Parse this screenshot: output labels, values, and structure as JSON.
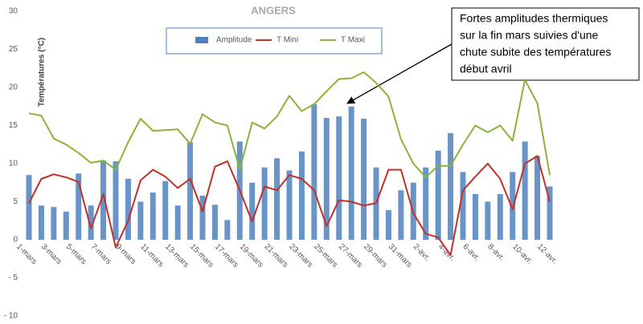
{
  "chart_data": {
    "type": "bar-line",
    "title": "ANGERS",
    "y_label": "Températures (°C)",
    "annotation": [
      "Fortes amplitudes thermiques",
      "sur la fin mars suivies d'une",
      "chute subite des températures",
      "début avril"
    ],
    "categories": [
      "1-mars",
      null,
      "3-mars",
      null,
      "5-mars",
      null,
      "7-mars",
      null,
      "9-mars",
      null,
      "11-mars",
      null,
      "13-mars",
      null,
      "15-mars",
      null,
      "17-mars",
      null,
      "19-mars",
      null,
      "21-mars",
      null,
      "23-mars",
      null,
      "25-mars",
      null,
      "27-mars",
      null,
      "29-mars",
      null,
      "31-mars",
      null,
      "2-avr.",
      null,
      "4-avr.",
      null,
      "6-avr.",
      null,
      "8-avr.",
      null,
      "10-avr.",
      null,
      "12-avr."
    ],
    "series": [
      {
        "name": "Amplitude",
        "type": "bar",
        "color": "#4f81bd",
        "values": [
          8.5,
          4.5,
          4.3,
          3.7,
          8.7,
          4.5,
          10.4,
          10.3,
          8.0,
          5.0,
          6.2,
          7.7,
          4.5,
          12.8,
          5.8,
          4.6,
          2.6,
          12.9,
          7.5,
          9.5,
          10.7,
          9.1,
          11.6,
          17.8,
          16.0,
          16.2,
          17.5,
          15.9,
          9.5,
          3.9,
          6.5,
          7.5,
          9.5,
          11.7,
          14.0,
          8.9,
          6.0,
          5.0,
          6.0,
          8.9,
          12.9,
          11.0,
          7.0
        ]
      },
      {
        "name": "T Mini",
        "type": "line",
        "color": "#c0312b",
        "values": [
          4.8,
          8.0,
          8.6,
          8.2,
          7.6,
          1.5,
          6.0,
          -1.0,
          2.5,
          7.8,
          9.2,
          8.3,
          6.8,
          8.0,
          3.7,
          9.6,
          10.3,
          6.5,
          2.4,
          7.0,
          6.5,
          8.5,
          8.0,
          6.5,
          1.8,
          5.2,
          5.0,
          4.5,
          4.8,
          9.2,
          9.2,
          3.5,
          0.8,
          0.3,
          -2.0,
          6.5,
          8.3,
          10.0,
          8.0,
          4.0,
          10.0,
          11.0,
          5.0
        ]
      },
      {
        "name": "T Maxi",
        "type": "line",
        "color": "#8cb23a",
        "values": [
          16.6,
          16.3,
          13.3,
          12.5,
          11.4,
          10.1,
          10.4,
          9.2,
          12.8,
          15.9,
          14.3,
          14.4,
          14.5,
          12.6,
          16.5,
          15.4,
          15.0,
          9.2,
          15.4,
          14.6,
          16.2,
          18.9,
          16.9,
          17.8,
          19.5,
          21.1,
          21.2,
          22.0,
          20.6,
          18.8,
          13.2,
          10.0,
          8.2,
          9.7,
          9.7,
          12.5,
          15.0,
          14.1,
          15.0,
          13.0,
          21.0,
          17.9,
          8.5
        ]
      }
    ],
    "ylim": [
      -10,
      30
    ],
    "yticks": [
      {
        "value": -10,
        "label": "- 10"
      },
      {
        "value": -5,
        "label": "- 5"
      },
      0,
      5,
      10,
      15,
      20,
      25,
      30
    ]
  }
}
